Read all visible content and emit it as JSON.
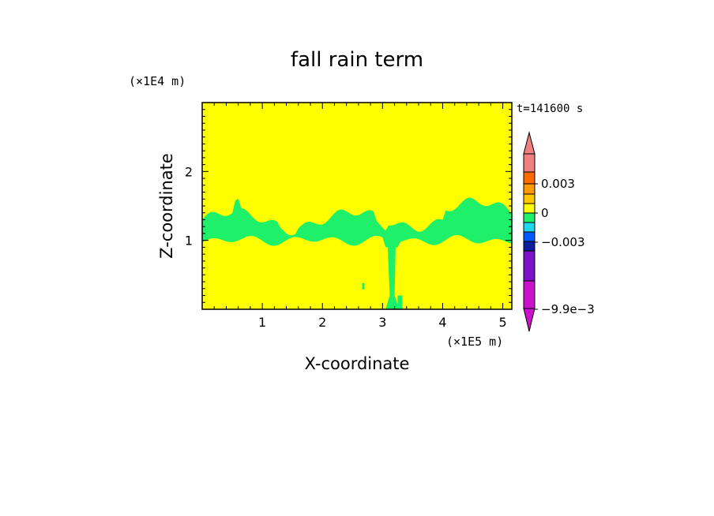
{
  "chart_data": {
    "type": "heatmap",
    "title": "fall rain term",
    "xlabel": "X-coordinate",
    "ylabel": "Z-coordinate",
    "x_unit": "(×1E5 m)",
    "y_unit": "(×1E4 m)",
    "time_label": "t=141600 s",
    "xlim": [
      0,
      5.15
    ],
    "ylim": [
      0,
      3.0
    ],
    "x_ticks": [
      "1",
      "2",
      "3",
      "4",
      "5"
    ],
    "y_ticks": [
      "1",
      "2"
    ],
    "background_value": 0,
    "colorbar": {
      "levels": [
        {
          "min": 0.003,
          "max": 0.0045,
          "color": "#f08080"
        },
        {
          "min": 0.0045,
          "max": 0.006,
          "color": "#f07878"
        },
        {
          "min": 0.0025,
          "max": 0.003,
          "color": "#ff6a00"
        },
        {
          "min": 0.002,
          "max": 0.0025,
          "color": "#ff9900"
        },
        {
          "min": 0.001,
          "max": 0.002,
          "color": "#ffc800"
        },
        {
          "min": 0.0,
          "max": 0.001,
          "color": "#ffff00"
        },
        {
          "min": -0.001,
          "max": 0.0,
          "color": "#1ff06a"
        },
        {
          "min": -0.002,
          "max": -0.001,
          "color": "#1ed8ef"
        },
        {
          "min": -0.003,
          "max": -0.002,
          "color": "#005aff"
        },
        {
          "min": -0.004,
          "max": -0.003,
          "color": "#0a1ea0"
        },
        {
          "min": -0.0065,
          "max": -0.004,
          "color": "#7a14c8"
        },
        {
          "min": -0.0099,
          "max": -0.0065,
          "color": "#cc11cc"
        }
      ],
      "labels": [
        "0.003",
        "0",
        "−0.003",
        "−9.9e−3"
      ]
    },
    "colors": {
      "field_background": "#ffff00",
      "rain_band": "#1ff06a"
    }
  }
}
